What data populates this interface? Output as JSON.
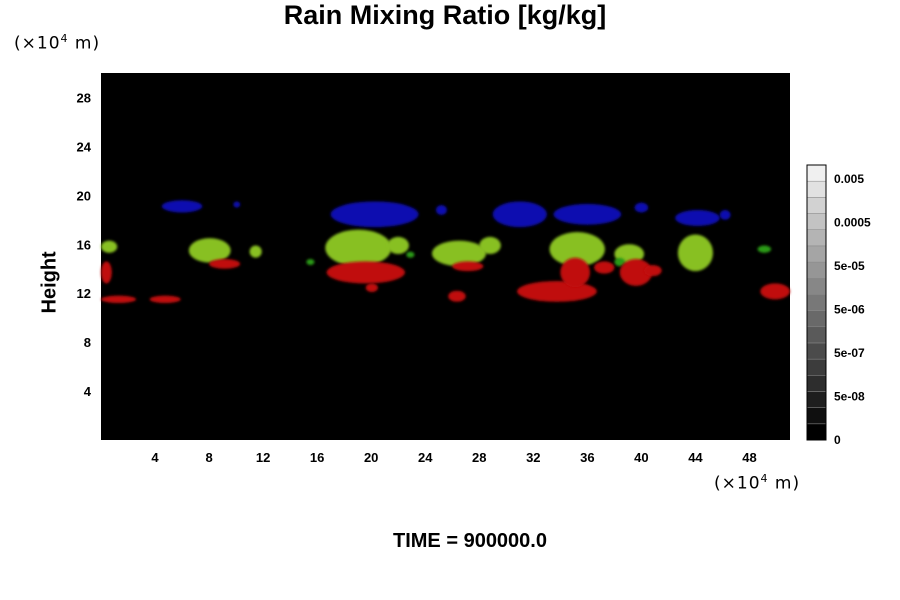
{
  "chart_data": {
    "type": "heatmap",
    "title": "Rain Mixing Ratio [kg/kg]",
    "ylabel": "Height",
    "y_unit_prefix": "(×10",
    "y_unit_exp": "4",
    "y_unit_suffix": " m)",
    "x_unit_prefix": "(×10",
    "x_unit_exp": "4",
    "x_unit_suffix": " m)",
    "xlim": [
      0,
      51
    ],
    "ylim": [
      0,
      30
    ],
    "x_ticks": [
      4,
      8,
      12,
      16,
      20,
      24,
      28,
      32,
      36,
      40,
      44,
      48
    ],
    "y_ticks": [
      4,
      8,
      12,
      16,
      20,
      24,
      28
    ],
    "background_color": "#000000",
    "colorbar": {
      "labels": [
        "0.005",
        "0.0005",
        "5e-05",
        "5e-06",
        "5e-07",
        "5e-08",
        "0"
      ],
      "levels": 17,
      "color_min": "#000000",
      "color_max": "#f0f0f0"
    },
    "layers": [
      {
        "color": "#1010b0",
        "blobs": [
          {
            "x0": 4.5,
            "x1": 7.5,
            "y0": 18.6,
            "y1": 19.6
          },
          {
            "x0": 9.8,
            "x1": 10.3,
            "y0": 19.0,
            "y1": 19.5
          },
          {
            "x0": 17.0,
            "x1": 23.5,
            "y0": 17.4,
            "y1": 19.5
          },
          {
            "x0": 24.8,
            "x1": 25.6,
            "y0": 18.4,
            "y1": 19.2
          },
          {
            "x0": 29.0,
            "x1": 33.0,
            "y0": 17.4,
            "y1": 19.5
          },
          {
            "x0": 33.5,
            "x1": 38.5,
            "y0": 17.6,
            "y1": 19.3
          },
          {
            "x0": 39.5,
            "x1": 40.5,
            "y0": 18.6,
            "y1": 19.4
          },
          {
            "x0": 42.5,
            "x1": 45.8,
            "y0": 17.5,
            "y1": 18.8
          },
          {
            "x0": 45.8,
            "x1": 46.6,
            "y0": 18.0,
            "y1": 18.8
          }
        ]
      },
      {
        "color": "#88c020",
        "blobs": [
          {
            "x0": -0.3,
            "x1": 1.2,
            "y0": 15.3,
            "y1": 16.3
          },
          {
            "x0": 6.5,
            "x1": 9.6,
            "y0": 14.5,
            "y1": 16.5
          },
          {
            "x0": 11.0,
            "x1": 11.9,
            "y0": 14.9,
            "y1": 15.9
          },
          {
            "x0": 16.6,
            "x1": 21.5,
            "y0": 14.2,
            "y1": 17.2
          },
          {
            "x0": 21.2,
            "x1": 22.8,
            "y0": 15.2,
            "y1": 16.6
          },
          {
            "x0": 24.5,
            "x1": 28.5,
            "y0": 14.2,
            "y1": 16.3
          },
          {
            "x0": 28.0,
            "x1": 29.6,
            "y0": 15.2,
            "y1": 16.6
          },
          {
            "x0": 33.2,
            "x1": 37.3,
            "y0": 14.2,
            "y1": 17.0
          },
          {
            "x0": 38.0,
            "x1": 40.2,
            "y0": 14.4,
            "y1": 16.0
          },
          {
            "x0": 42.7,
            "x1": 45.3,
            "y0": 13.8,
            "y1": 16.8
          }
        ]
      },
      {
        "color": "#2a9a14",
        "blobs": [
          {
            "x0": 15.2,
            "x1": 15.8,
            "y0": 14.3,
            "y1": 14.8
          },
          {
            "x0": 22.6,
            "x1": 23.2,
            "y0": 14.9,
            "y1": 15.4
          },
          {
            "x0": 38.0,
            "x1": 38.8,
            "y0": 14.2,
            "y1": 14.9
          },
          {
            "x0": 48.6,
            "x1": 49.6,
            "y0": 15.3,
            "y1": 15.9
          }
        ]
      },
      {
        "color": "#c01010",
        "blobs": [
          {
            "x0": -0.3,
            "x1": 0.8,
            "y0": 12.8,
            "y1": 14.6
          },
          {
            "x0": 0.0,
            "x1": 2.6,
            "y0": 11.2,
            "y1": 11.8
          },
          {
            "x0": 3.6,
            "x1": 5.9,
            "y0": 11.2,
            "y1": 11.8
          },
          {
            "x0": 8.0,
            "x1": 10.3,
            "y0": 14.0,
            "y1": 14.8
          },
          {
            "x0": 16.7,
            "x1": 22.5,
            "y0": 12.8,
            "y1": 14.6
          },
          {
            "x0": 19.6,
            "x1": 20.5,
            "y0": 12.1,
            "y1": 12.8
          },
          {
            "x0": 26.0,
            "x1": 28.3,
            "y0": 13.8,
            "y1": 14.6
          },
          {
            "x0": 25.7,
            "x1": 27.0,
            "y0": 11.3,
            "y1": 12.2
          },
          {
            "x0": 30.8,
            "x1": 36.7,
            "y0": 11.3,
            "y1": 13.0
          },
          {
            "x0": 34.0,
            "x1": 36.2,
            "y0": 12.5,
            "y1": 14.9
          },
          {
            "x0": 36.5,
            "x1": 38.0,
            "y0": 13.6,
            "y1": 14.6
          },
          {
            "x0": 38.4,
            "x1": 40.8,
            "y0": 12.6,
            "y1": 14.8
          },
          {
            "x0": 40.2,
            "x1": 41.5,
            "y0": 13.4,
            "y1": 14.3
          },
          {
            "x0": 48.8,
            "x1": 51.2,
            "y0": 11.5,
            "y1": 12.8
          }
        ]
      }
    ]
  },
  "time_label": "TIME = 900000.0"
}
